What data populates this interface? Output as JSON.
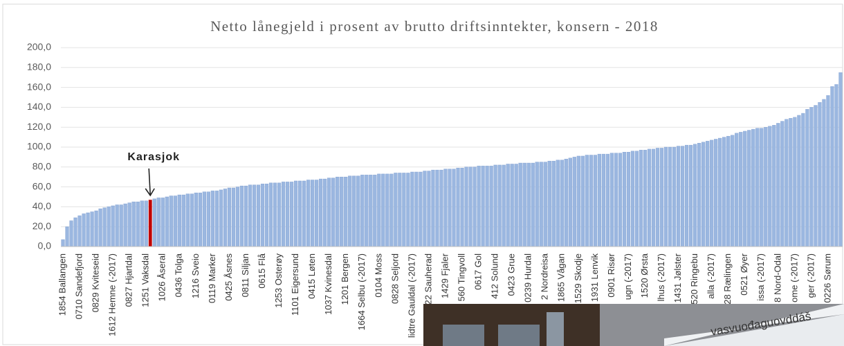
{
  "chart_data": {
    "type": "bar",
    "title": "Netto lånegjeld i prosent av brutto driftsinntekter, konsern - 2018",
    "categories": [
      "1854 Ballangen",
      null,
      null,
      null,
      "0710 Sandefjord",
      null,
      null,
      null,
      "0829 Kviteseid",
      null,
      null,
      null,
      "1612 Hemne (-2017)",
      null,
      null,
      null,
      "0827 Hjartdal",
      null,
      null,
      null,
      "1251 Vaksdal",
      null,
      null,
      null,
      "1026 Åseral",
      null,
      null,
      null,
      "0436 Tolga",
      null,
      null,
      null,
      "1216 Sveio",
      null,
      null,
      null,
      "0119 Marker",
      null,
      null,
      null,
      "0425 Åsnes",
      null,
      null,
      null,
      "0811 Siljan",
      null,
      null,
      null,
      "0615 Flå",
      null,
      null,
      null,
      "1253 Osterøy",
      null,
      null,
      null,
      "1101 Eigersund",
      null,
      null,
      null,
      "0415 Løten",
      null,
      null,
      null,
      "1037 Kvinesdal",
      null,
      null,
      null,
      "1201 Bergen",
      null,
      null,
      null,
      "1664 Selbu (-2017)",
      null,
      null,
      null,
      "0104 Moss",
      null,
      null,
      null,
      "0828 Seljord",
      null,
      null,
      null,
      "lidtre Gauldal (-2017)",
      null,
      null,
      null,
      "22 Sauherad",
      null,
      null,
      null,
      "1429 Fjaler",
      null,
      null,
      null,
      "560 Tingvoll",
      null,
      null,
      null,
      "0617 Gol",
      null,
      null,
      null,
      "412 Solund",
      null,
      null,
      null,
      "0423 Grue",
      null,
      null,
      null,
      "0239 Hurdal",
      null,
      null,
      null,
      "2 Nordreisa",
      null,
      null,
      null,
      "1865 Vågan",
      null,
      null,
      null,
      "1529 Skodje",
      null,
      null,
      null,
      "1931 Lenvik",
      null,
      null,
      null,
      "0901 Risør",
      null,
      null,
      null,
      "ugn (-2017)",
      null,
      null,
      null,
      "1520 Ørsta",
      null,
      null,
      null,
      "lhus (-2017)",
      null,
      null,
      null,
      "1431 Jølster",
      null,
      null,
      null,
      "520 Ringebu",
      null,
      null,
      null,
      "alla (-2017)",
      null,
      null,
      null,
      "28 Rælingen",
      null,
      null,
      null,
      "0521 Øyer",
      null,
      null,
      null,
      "issa (-2017)",
      null,
      null,
      null,
      "8 Nord-Odal",
      null,
      null,
      null,
      "ome (-2017)",
      null,
      null,
      null,
      "ger (-2017)",
      null,
      null,
      null,
      "0226 Sørum",
      null,
      null,
      null
    ],
    "values": [
      7,
      20,
      26,
      29,
      31,
      33,
      34,
      35,
      36,
      38,
      39,
      40,
      41,
      42,
      42,
      43,
      44,
      45,
      45,
      46,
      46,
      47,
      48,
      49,
      49,
      50,
      51,
      51,
      52,
      52,
      53,
      53,
      54,
      54,
      55,
      55,
      56,
      56,
      57,
      58,
      59,
      59,
      60,
      61,
      61,
      62,
      62,
      62,
      63,
      63,
      64,
      64,
      64,
      65,
      65,
      65,
      66,
      66,
      66,
      67,
      67,
      67,
      68,
      68,
      69,
      69,
      70,
      70,
      70,
      71,
      71,
      71,
      72,
      72,
      72,
      72,
      73,
      73,
      73,
      73,
      74,
      74,
      74,
      74,
      75,
      75,
      75,
      76,
      76,
      77,
      77,
      77,
      78,
      78,
      78,
      79,
      79,
      80,
      80,
      80,
      81,
      81,
      81,
      81,
      82,
      82,
      82,
      83,
      83,
      83,
      84,
      84,
      84,
      84,
      85,
      85,
      85,
      86,
      86,
      87,
      87,
      88,
      89,
      90,
      91,
      91,
      92,
      92,
      92,
      93,
      93,
      93,
      94,
      94,
      94,
      95,
      95,
      96,
      96,
      97,
      97,
      98,
      98,
      99,
      99,
      100,
      100,
      100,
      101,
      101,
      102,
      102,
      103,
      104,
      105,
      106,
      107,
      108,
      109,
      110,
      111,
      112,
      114,
      115,
      116,
      117,
      118,
      119,
      119,
      120,
      121,
      122,
      124,
      126,
      128,
      129,
      130,
      132,
      134,
      138,
      140,
      142,
      145,
      148,
      152,
      161,
      163,
      175
    ],
    "color": "#9bb7e0",
    "annotation": {
      "text": "Karasjok",
      "category_index": 21,
      "color": "#c00000"
    },
    "ylim": [
      0,
      200
    ],
    "yticks": [
      {
        "value": 0,
        "label": "0,0"
      },
      {
        "value": 20,
        "label": "20,0"
      },
      {
        "value": 40,
        "label": "40,0"
      },
      {
        "value": 60,
        "label": "60,0"
      },
      {
        "value": 80,
        "label": "80,0"
      },
      {
        "value": 100,
        "label": "100,0"
      },
      {
        "value": 120,
        "label": "120,0"
      },
      {
        "value": 140,
        "label": "140,0"
      },
      {
        "value": 160,
        "label": "160,0"
      },
      {
        "value": 180,
        "label": "180,0"
      },
      {
        "value": 200,
        "label": "200,0"
      }
    ],
    "grid": true
  },
  "photo": {
    "sign_text": "vasvuođaguovddáš"
  }
}
